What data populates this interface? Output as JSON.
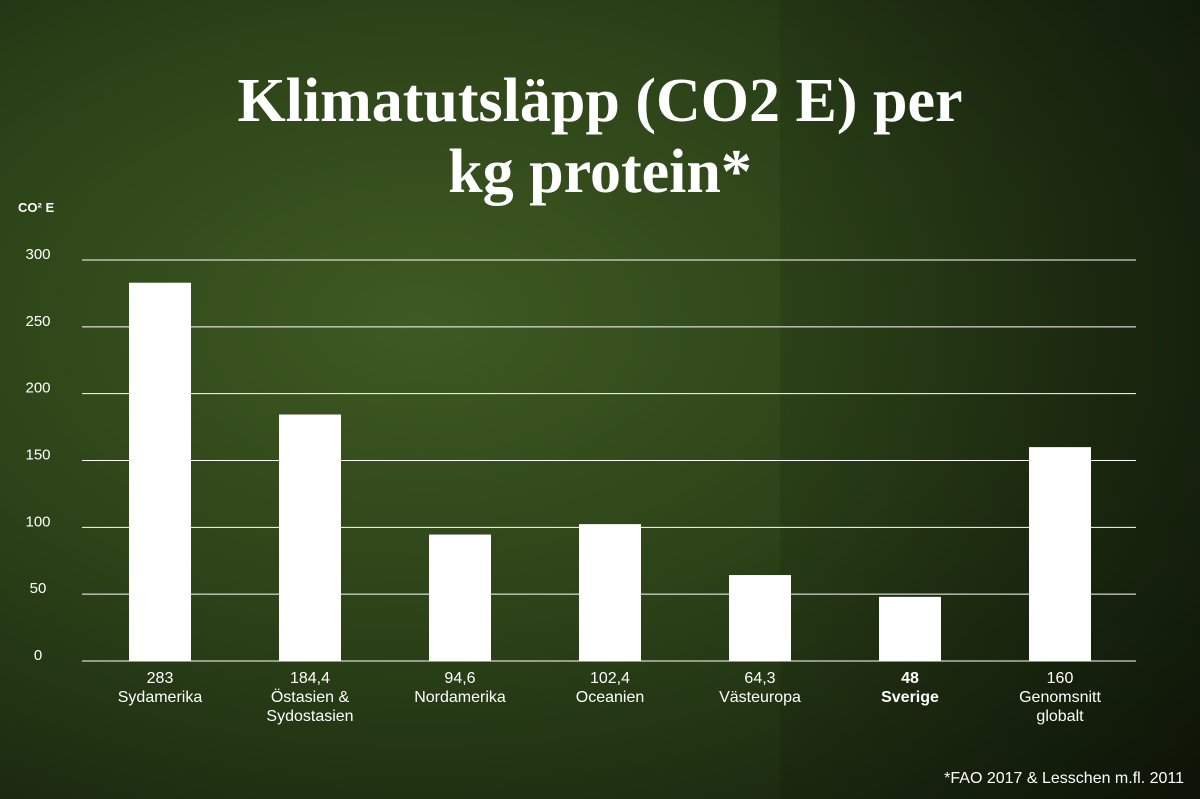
{
  "chart_data": {
    "type": "bar",
    "title": "Klimatutsläpp (CO2 E) per kg protein*",
    "y_axis_label": "CO² E",
    "categories": [
      "Sydamerika",
      "Östasien & Sydostasien",
      "Nordamerika",
      "Oceanien",
      "Västeuropa",
      "Sverige",
      "Genomsnitt globalt"
    ],
    "values": [
      283,
      184.4,
      94.6,
      102.4,
      64.3,
      48,
      160
    ],
    "value_labels": [
      "283",
      "184,4",
      "94,6",
      "102,4",
      "64,3",
      "48",
      "160"
    ],
    "bold": [
      false,
      false,
      false,
      false,
      false,
      true,
      false
    ],
    "color": "#ffffff",
    "ylim": [
      0,
      300
    ],
    "yticks": [
      0,
      50,
      100,
      150,
      200,
      250,
      300
    ],
    "grid": true,
    "footnote": "*FAO 2017 & Lesschen m.fl. 2011"
  }
}
